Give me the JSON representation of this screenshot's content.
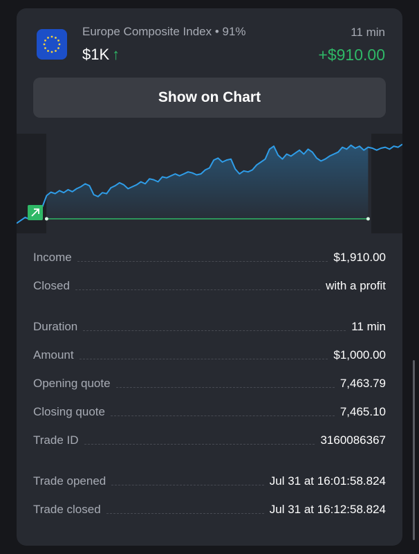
{
  "trade": {
    "asset": "Europe Composite Index",
    "payout_separator": " • ",
    "payout": "91%",
    "amount_short": "$1K",
    "direction_icon": "arrow-up-icon",
    "duration": "11 min",
    "profit": "+$910.00",
    "flag_icon": "eu-flag-icon"
  },
  "show_chart_button": "Show on Chart",
  "colors": {
    "profit_green": "#2fb867",
    "chart_line": "#2f9de8",
    "card_bg": "#272a31"
  },
  "details": [
    {
      "label": "Income",
      "value": "$1,910.00"
    },
    {
      "label": "Closed",
      "value": "with a profit"
    },
    {
      "label": "Duration",
      "value": "11 min"
    },
    {
      "label": "Amount",
      "value": "$1,000.00"
    },
    {
      "label": "Opening quote",
      "value": "7,463.79"
    },
    {
      "label": "Closing quote",
      "value": "7,465.10"
    },
    {
      "label": "Trade ID",
      "value": "3160086367"
    },
    {
      "label": "Trade opened",
      "value": "Jul 31 at 16:01:58.824"
    },
    {
      "label": "Trade closed",
      "value": "Jul 31 at 16:12:58.824"
    }
  ],
  "chart_data": {
    "type": "line",
    "opening_quote": 7463.79,
    "closing_quote": 7465.1,
    "series": [
      {
        "values": [
          7461.2,
          7461.8,
          7462.4,
          7462.0,
          7463.0,
          7463.8,
          7464.5,
          7466.8,
          7467.5,
          7467.2,
          7467.8,
          7467.4,
          7468.0,
          7467.6,
          7468.2,
          7468.6,
          7469.2,
          7468.8,
          7467.0,
          7466.6,
          7467.4,
          7467.2,
          7468.4,
          7468.8,
          7469.4,
          7469.0,
          7468.2,
          7468.6,
          7469.0,
          7469.6,
          7469.2,
          7470.2,
          7470.0,
          7469.6,
          7470.6,
          7470.4,
          7470.8,
          7471.2,
          7470.8,
          7471.2,
          7471.6,
          7471.4,
          7471.0,
          7471.2,
          7472.0,
          7472.4,
          7474.0,
          7474.4,
          7473.6,
          7474.0,
          7474.2,
          7472.2,
          7471.2,
          7471.8,
          7471.6,
          7472.0,
          7473.0,
          7473.6,
          7474.2,
          7476.2,
          7476.8,
          7475.0,
          7474.2,
          7475.2,
          7474.8,
          7475.4,
          7476.0,
          7475.2,
          7476.2,
          7475.6,
          7474.4,
          7473.8,
          7474.2,
          7474.8,
          7475.2,
          7475.6,
          7476.6,
          7476.2,
          7477.0,
          7476.4,
          7476.8,
          7476.0,
          7476.6,
          7476.4,
          7476.0,
          7476.4,
          7476.6,
          7476.2,
          7476.8,
          7476.6,
          7477.2
        ]
      }
    ]
  }
}
